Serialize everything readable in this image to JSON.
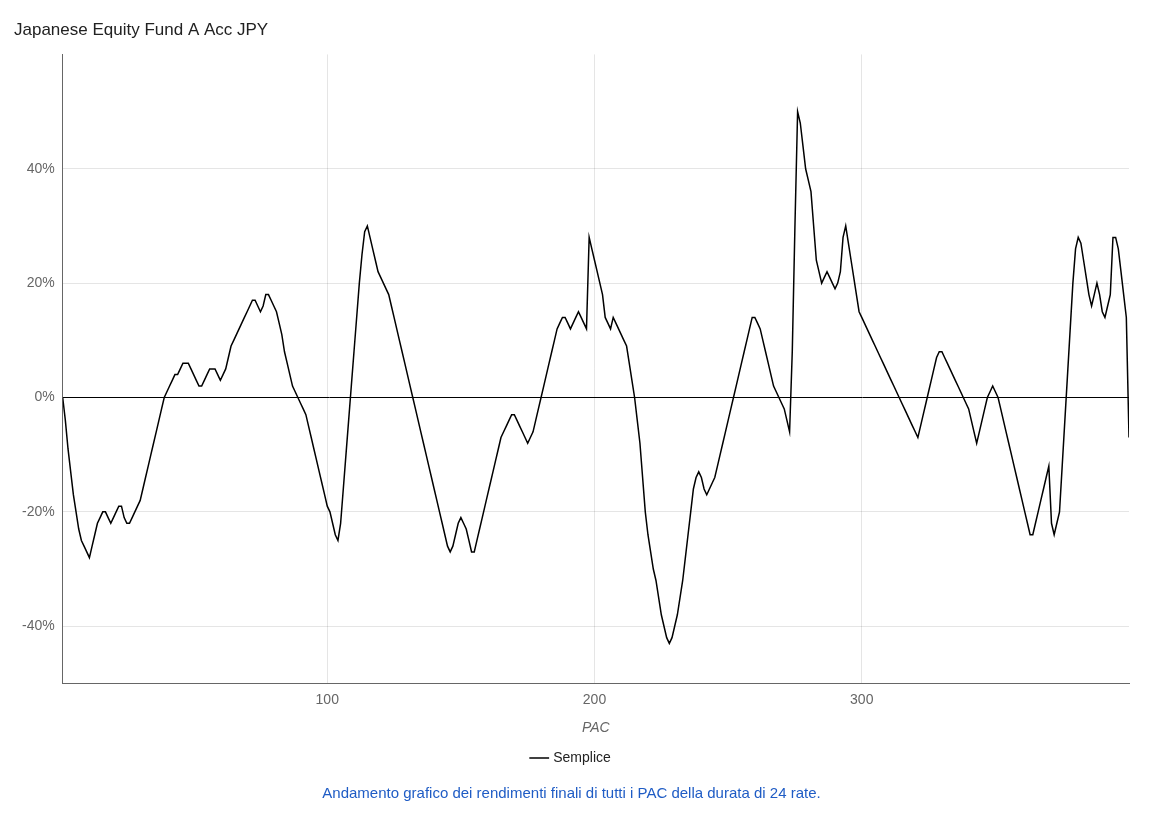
{
  "chart_data": {
    "type": "line",
    "title": "Japanese Equity Fund A Acc JPY",
    "x_label": "PAC",
    "annotations": [
      {
        "text": "Andamento grafico dei rendimenti finali di tutti i PAC della durata di 24 rate.",
        "color": "#1F5CC5"
      }
    ],
    "legend": "bottom",
    "grid": true,
    "xlim": [
      1,
      400
    ],
    "xticks": [
      100,
      200,
      300
    ],
    "ylim": [
      -0.5,
      0.6
    ],
    "yticks": [
      {
        "value": -0.4,
        "label": "-40%"
      },
      {
        "value": -0.2,
        "label": "-20%"
      },
      {
        "value": 0.0,
        "label": "0%"
      },
      {
        "value": 0.2,
        "label": "20%"
      },
      {
        "value": 0.4,
        "label": "40%"
      }
    ],
    "x": [
      1,
      2,
      3,
      4,
      5,
      6,
      7,
      8,
      9,
      10,
      11,
      12,
      13,
      14,
      15,
      16,
      17,
      18,
      19,
      20,
      21,
      22,
      23,
      24,
      25,
      26,
      27,
      28,
      29,
      30,
      31,
      32,
      33,
      34,
      35,
      36,
      37,
      38,
      39,
      40,
      41,
      42,
      43,
      44,
      45,
      46,
      47,
      48,
      49,
      50,
      51,
      52,
      53,
      54,
      55,
      56,
      57,
      58,
      59,
      60,
      61,
      62,
      63,
      64,
      65,
      66,
      67,
      68,
      69,
      70,
      71,
      72,
      73,
      74,
      75,
      76,
      77,
      78,
      79,
      80,
      81,
      82,
      83,
      84,
      85,
      86,
      87,
      88,
      89,
      90,
      91,
      92,
      93,
      94,
      95,
      96,
      97,
      98,
      99,
      100,
      101,
      102,
      103,
      104,
      105,
      106,
      107,
      108,
      109,
      110,
      111,
      112,
      113,
      114,
      115,
      116,
      117,
      118,
      119,
      120,
      121,
      122,
      123,
      124,
      125,
      126,
      127,
      128,
      129,
      130,
      131,
      132,
      133,
      134,
      135,
      136,
      137,
      138,
      139,
      140,
      141,
      142,
      143,
      144,
      145,
      146,
      147,
      148,
      149,
      150,
      151,
      152,
      153,
      154,
      155,
      156,
      157,
      158,
      159,
      160,
      161,
      162,
      163,
      164,
      165,
      166,
      167,
      168,
      169,
      170,
      171,
      172,
      173,
      174,
      175,
      176,
      177,
      178,
      179,
      180,
      181,
      182,
      183,
      184,
      185,
      186,
      187,
      188,
      189,
      190,
      191,
      192,
      193,
      194,
      195,
      196,
      197,
      198,
      199,
      200,
      201,
      202,
      203,
      204,
      205,
      206,
      207,
      208,
      209,
      210,
      211,
      212,
      213,
      214,
      215,
      216,
      217,
      218,
      219,
      220,
      221,
      222,
      223,
      224,
      225,
      226,
      227,
      228,
      229,
      230,
      231,
      232,
      233,
      234,
      235,
      236,
      237,
      238,
      239,
      240,
      241,
      242,
      243,
      244,
      245,
      246,
      247,
      248,
      249,
      250,
      251,
      252,
      253,
      254,
      255,
      256,
      257,
      258,
      259,
      260,
      261,
      262,
      263,
      264,
      265,
      266,
      267,
      268,
      269,
      270,
      271,
      272,
      273,
      274,
      275,
      276,
      277,
      278,
      279,
      280,
      281,
      282,
      283,
      284,
      285,
      286,
      287,
      288,
      289,
      290,
      291,
      292,
      293,
      294,
      295,
      296,
      297,
      298,
      299,
      300,
      301,
      302,
      303,
      304,
      305,
      306,
      307,
      308,
      309,
      310,
      311,
      312,
      313,
      314,
      315,
      316,
      317,
      318,
      319,
      320,
      321,
      322,
      323,
      324,
      325,
      326,
      327,
      328,
      329,
      330,
      331,
      332,
      333,
      334,
      335,
      336,
      337,
      338,
      339,
      340,
      341,
      342,
      343,
      344,
      345,
      346,
      347,
      348,
      349,
      350,
      351,
      352,
      353,
      354,
      355,
      356,
      357,
      358,
      359,
      360,
      361,
      362,
      363,
      364,
      365,
      366,
      367,
      368,
      369,
      370,
      371,
      372,
      373,
      374,
      375,
      376,
      377,
      378,
      379,
      380,
      381,
      382,
      383,
      384,
      385,
      386,
      387,
      388,
      389,
      390,
      391,
      392,
      393,
      394,
      395,
      396,
      397,
      398,
      399,
      400
    ],
    "series": [
      {
        "name": "Semplice",
        "color": "#000000",
        "values": [
          0.0,
          -0.04,
          -0.09,
          -0.13,
          -0.17,
          -0.2,
          -0.23,
          -0.25,
          -0.26,
          -0.27,
          -0.28,
          -0.26,
          -0.24,
          -0.22,
          -0.21,
          -0.2,
          -0.2,
          -0.21,
          -0.22,
          -0.21,
          -0.2,
          -0.19,
          -0.19,
          -0.21,
          -0.22,
          -0.22,
          -0.21,
          -0.2,
          -0.19,
          -0.18,
          -0.16,
          -0.14,
          -0.12,
          -0.1,
          -0.08,
          -0.06,
          -0.04,
          -0.02,
          0.0,
          0.01,
          0.02,
          0.03,
          0.04,
          0.04,
          0.05,
          0.06,
          0.06,
          0.06,
          0.05,
          0.04,
          0.03,
          0.02,
          0.02,
          0.03,
          0.04,
          0.05,
          0.05,
          0.05,
          0.04,
          0.03,
          0.04,
          0.05,
          0.07,
          0.09,
          0.1,
          0.11,
          0.12,
          0.13,
          0.14,
          0.15,
          0.16,
          0.17,
          0.17,
          0.16,
          0.15,
          0.16,
          0.18,
          0.18,
          0.17,
          0.16,
          0.15,
          0.13,
          0.11,
          0.08,
          0.06,
          0.04,
          0.02,
          0.01,
          0.0,
          -0.01,
          -0.02,
          -0.03,
          -0.05,
          -0.07,
          -0.09,
          -0.11,
          -0.13,
          -0.15,
          -0.17,
          -0.19,
          -0.2,
          -0.22,
          -0.24,
          -0.25,
          -0.22,
          -0.16,
          -0.1,
          -0.04,
          0.02,
          0.08,
          0.14,
          0.2,
          0.25,
          0.29,
          0.3,
          0.28,
          0.26,
          0.24,
          0.22,
          0.21,
          0.2,
          0.19,
          0.18,
          0.16,
          0.14,
          0.12,
          0.1,
          0.08,
          0.06,
          0.04,
          0.02,
          0.0,
          -0.02,
          -0.04,
          -0.06,
          -0.08,
          -0.1,
          -0.12,
          -0.14,
          -0.16,
          -0.18,
          -0.2,
          -0.22,
          -0.24,
          -0.26,
          -0.27,
          -0.26,
          -0.24,
          -0.22,
          -0.21,
          -0.22,
          -0.23,
          -0.25,
          -0.27,
          -0.27,
          -0.25,
          -0.23,
          -0.21,
          -0.19,
          -0.17,
          -0.15,
          -0.13,
          -0.11,
          -0.09,
          -0.07,
          -0.06,
          -0.05,
          -0.04,
          -0.03,
          -0.03,
          -0.04,
          -0.05,
          -0.06,
          -0.07,
          -0.08,
          -0.07,
          -0.06,
          -0.04,
          -0.02,
          0.0,
          0.02,
          0.04,
          0.06,
          0.08,
          0.1,
          0.12,
          0.13,
          0.14,
          0.14,
          0.13,
          0.12,
          0.13,
          0.14,
          0.15,
          0.14,
          0.13,
          0.12,
          0.28,
          0.26,
          0.24,
          0.22,
          0.2,
          0.18,
          0.14,
          0.13,
          0.12,
          0.14,
          0.13,
          0.12,
          0.11,
          0.1,
          0.09,
          0.06,
          0.03,
          0.0,
          -0.04,
          -0.08,
          -0.14,
          -0.2,
          -0.24,
          -0.27,
          -0.3,
          -0.32,
          -0.35,
          -0.38,
          -0.4,
          -0.42,
          -0.43,
          -0.42,
          -0.4,
          -0.38,
          -0.35,
          -0.32,
          -0.28,
          -0.24,
          -0.2,
          -0.16,
          -0.14,
          -0.13,
          -0.14,
          -0.16,
          -0.17,
          -0.16,
          -0.15,
          -0.14,
          -0.12,
          -0.1,
          -0.08,
          -0.06,
          -0.04,
          -0.02,
          0.0,
          0.02,
          0.04,
          0.06,
          0.08,
          0.1,
          0.12,
          0.14,
          0.14,
          0.13,
          0.12,
          0.1,
          0.08,
          0.06,
          0.04,
          0.02,
          0.01,
          0.0,
          -0.01,
          -0.02,
          -0.04,
          -0.06,
          0.08,
          0.3,
          0.5,
          0.48,
          0.44,
          0.4,
          0.38,
          0.36,
          0.3,
          0.24,
          0.22,
          0.2,
          0.21,
          0.22,
          0.21,
          0.2,
          0.19,
          0.2,
          0.22,
          0.28,
          0.3,
          0.27,
          0.24,
          0.21,
          0.18,
          0.15,
          0.14,
          0.13,
          0.12,
          0.11,
          0.1,
          0.09,
          0.08,
          0.07,
          0.06,
          0.05,
          0.04,
          0.03,
          0.02,
          0.01,
          0.0,
          -0.01,
          -0.02,
          -0.03,
          -0.04,
          -0.05,
          -0.06,
          -0.07,
          -0.05,
          -0.03,
          -0.01,
          0.01,
          0.03,
          0.05,
          0.07,
          0.08,
          0.08,
          0.07,
          0.06,
          0.05,
          0.04,
          0.03,
          0.02,
          0.01,
          0.0,
          -0.01,
          -0.02,
          -0.04,
          -0.06,
          -0.08,
          -0.06,
          -0.04,
          -0.02,
          0.0,
          0.01,
          0.02,
          0.01,
          0.0,
          -0.02,
          -0.04,
          -0.06,
          -0.08,
          -0.1,
          -0.12,
          -0.14,
          -0.16,
          -0.18,
          -0.2,
          -0.22,
          -0.24,
          -0.24,
          -0.22,
          -0.2,
          -0.18,
          -0.16,
          -0.14,
          -0.12,
          -0.22,
          -0.24,
          -0.22,
          -0.2,
          -0.12,
          -0.04,
          0.04,
          0.12,
          0.2,
          0.26,
          0.28,
          0.27,
          0.24,
          0.21,
          0.18,
          0.16,
          0.18,
          0.2,
          0.18,
          0.15,
          0.14,
          0.16,
          0.18,
          0.28,
          0.28,
          0.26,
          0.22,
          0.18,
          0.14,
          -0.07
        ]
      }
    ]
  }
}
